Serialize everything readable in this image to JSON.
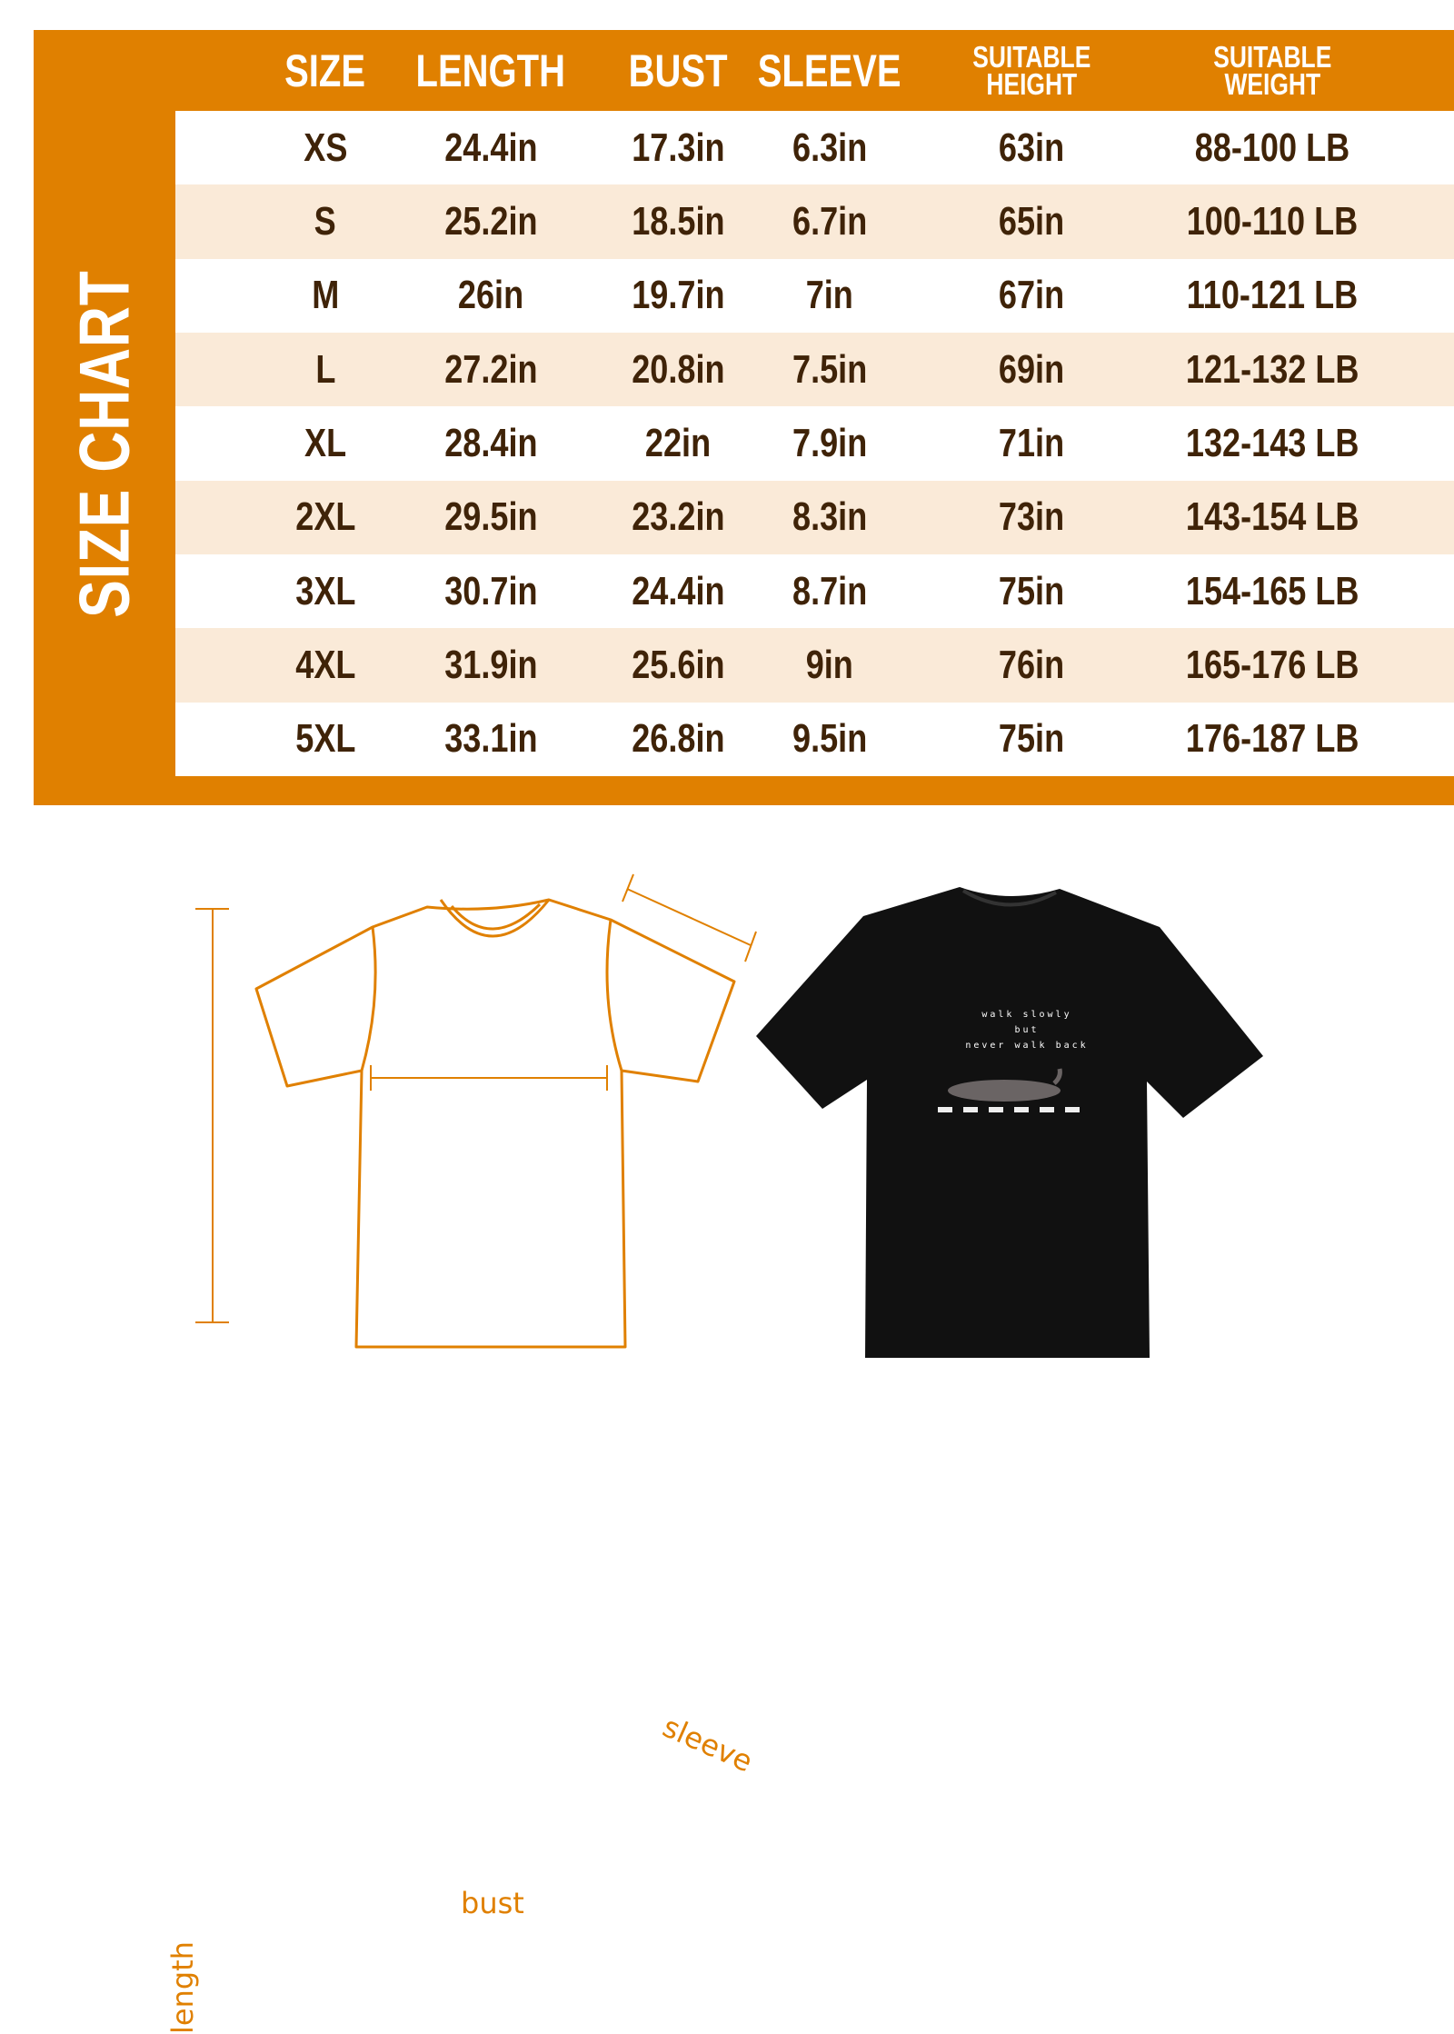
{
  "title": "SIZE CHART",
  "colors": {
    "accent": "#E08000",
    "text": "#3F2308",
    "alt_row": "#FAEAD8"
  },
  "headers": [
    "SIZE",
    "LENGTH",
    "BUST",
    "SLEEVE",
    "SUITABLE HEIGHT",
    "SUITABLE WEIGHT"
  ],
  "rows": [
    [
      "XS",
      "24.4in",
      "17.3in",
      "6.3in",
      "63in",
      "88-100 LB"
    ],
    [
      "S",
      "25.2in",
      "18.5in",
      "6.7in",
      "65in",
      "100-110 LB"
    ],
    [
      "M",
      "26in",
      "19.7in",
      "7in",
      "67in",
      "110-121 LB"
    ],
    [
      "L",
      "27.2in",
      "20.8in",
      "7.5in",
      "69in",
      "121-132 LB"
    ],
    [
      "XL",
      "28.4in",
      "22in",
      "7.9in",
      "71in",
      "132-143 LB"
    ],
    [
      "2XL",
      "29.5in",
      "23.2in",
      "8.3in",
      "73in",
      "143-154 LB"
    ],
    [
      "3XL",
      "30.7in",
      "24.4in",
      "8.7in",
      "75in",
      "154-165 LB"
    ],
    [
      "4XL",
      "31.9in",
      "25.6in",
      "9in",
      "76in",
      "165-176 LB"
    ],
    [
      "5XL",
      "33.1in",
      "26.8in",
      "9.5in",
      "75in",
      "176-187 LB"
    ]
  ],
  "diagram": {
    "sleeve": "sleeve",
    "bust": "bust",
    "length": "length"
  },
  "shirt_print": [
    "walk slowly",
    "but",
    "never walk back"
  ]
}
